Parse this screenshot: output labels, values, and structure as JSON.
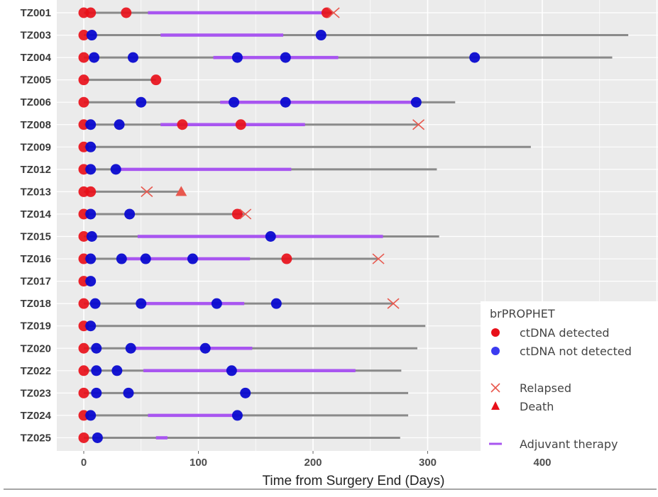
{
  "chart_data": {
    "type": "swimmer",
    "xlabel": "Time from Surgery End (Days)",
    "xlim": [
      -23,
      501
    ],
    "xticks": [
      0,
      100,
      200,
      300,
      400
    ],
    "grid": true,
    "legend": {
      "title": "brPROPHET",
      "placement": "bottom-right",
      "items": [
        {
          "label": "ctDNA detected",
          "kind": "detected"
        },
        {
          "label": "ctDNA not detected",
          "kind": "not_detected"
        },
        {
          "label": "Relapsed",
          "kind": "relapse"
        },
        {
          "label": "Death",
          "kind": "death"
        },
        {
          "label": "Adjuvant therapy",
          "kind": "therapy"
        }
      ]
    },
    "colors": {
      "detected": "#e8101a",
      "not_detected": "#0a0ad0",
      "therapy": "#a855f0",
      "line": "#8a8a8a",
      "relapse": "#e8584e",
      "panel": "#ebebeb",
      "grid": "#ffffff"
    },
    "patients": [
      {
        "id": "TZ001",
        "end": 218,
        "detected": [
          0,
          6,
          37,
          212
        ],
        "not_detected": [],
        "therapy": [
          [
            56,
            211
          ]
        ],
        "relapse": 218
      },
      {
        "id": "TZ003",
        "end": 475,
        "detected": [
          0
        ],
        "not_detected": [
          7,
          207
        ],
        "therapy": [
          [
            67,
            174
          ]
        ]
      },
      {
        "id": "TZ004",
        "end": 461,
        "detected": [
          0
        ],
        "not_detected": [
          9,
          43,
          134,
          176,
          341
        ],
        "therapy": [
          [
            113,
            222
          ]
        ]
      },
      {
        "id": "TZ005",
        "end": 63,
        "detected": [
          0,
          63
        ],
        "not_detected": [],
        "therapy": []
      },
      {
        "id": "TZ006",
        "end": 324,
        "detected": [
          0
        ],
        "not_detected": [
          50,
          131,
          176,
          290
        ],
        "therapy": [
          [
            119,
            290
          ]
        ]
      },
      {
        "id": "TZ008",
        "end": 292,
        "detected": [
          0,
          86,
          137
        ],
        "not_detected": [
          6,
          31
        ],
        "therapy": [
          [
            67,
            193
          ]
        ],
        "relapse": 292
      },
      {
        "id": "TZ009",
        "end": 390,
        "detected": [
          0
        ],
        "not_detected": [
          6
        ],
        "therapy": []
      },
      {
        "id": "TZ012",
        "end": 308,
        "detected": [
          0
        ],
        "not_detected": [
          6,
          28
        ],
        "therapy": [
          [
            28,
            181
          ]
        ]
      },
      {
        "id": "TZ013",
        "end": 85,
        "detected": [
          0,
          6
        ],
        "not_detected": [],
        "therapy": [],
        "relapse": 55,
        "death": 85
      },
      {
        "id": "TZ014",
        "end": 141,
        "detected": [
          0,
          134
        ],
        "not_detected": [
          6,
          40
        ],
        "therapy": [],
        "relapse": 141
      },
      {
        "id": "TZ015",
        "end": 310,
        "detected": [
          0
        ],
        "not_detected": [
          7,
          163
        ],
        "therapy": [
          [
            47,
            261
          ]
        ]
      },
      {
        "id": "TZ016",
        "end": 257,
        "detected": [
          0,
          177
        ],
        "not_detected": [
          6,
          33,
          54,
          95
        ],
        "therapy": [
          [
            33,
            145
          ]
        ],
        "relapse": 257
      },
      {
        "id": "TZ017",
        "end": 6,
        "detected": [
          0
        ],
        "not_detected": [
          6
        ],
        "therapy": []
      },
      {
        "id": "TZ018",
        "end": 270,
        "detected": [
          0
        ],
        "not_detected": [
          10,
          50,
          116,
          168
        ],
        "therapy": [
          [
            50,
            140
          ]
        ],
        "relapse": 270
      },
      {
        "id": "TZ019",
        "end": 298,
        "detected": [
          0
        ],
        "not_detected": [
          6
        ],
        "therapy": []
      },
      {
        "id": "TZ020",
        "end": 291,
        "detected": [
          0
        ],
        "not_detected": [
          11,
          41,
          106
        ],
        "therapy": [
          [
            41,
            147
          ]
        ]
      },
      {
        "id": "TZ022",
        "end": 277,
        "detected": [
          0
        ],
        "not_detected": [
          11,
          29,
          129
        ],
        "therapy": [
          [
            52,
            237
          ]
        ]
      },
      {
        "id": "TZ023",
        "end": 283,
        "detected": [
          0
        ],
        "not_detected": [
          11,
          39,
          141
        ],
        "therapy": []
      },
      {
        "id": "TZ024",
        "end": 283,
        "detected": [
          0
        ],
        "not_detected": [
          6,
          134
        ],
        "therapy": [
          [
            56,
            135
          ]
        ]
      },
      {
        "id": "TZ025",
        "end": 276,
        "detected": [
          0
        ],
        "not_detected": [
          12
        ],
        "therapy": [
          [
            63,
            73
          ]
        ]
      }
    ]
  }
}
